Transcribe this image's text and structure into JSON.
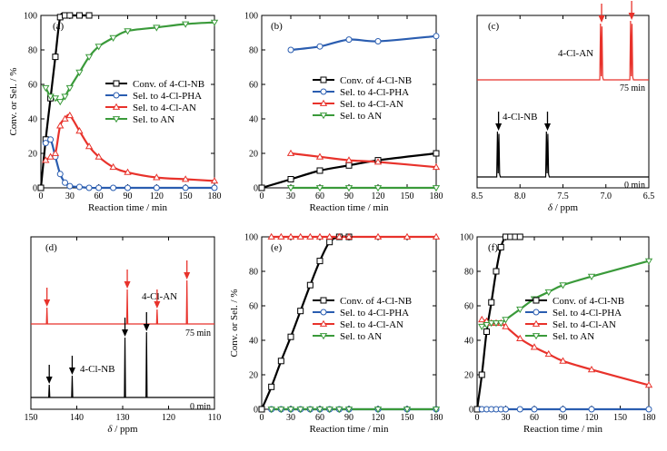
{
  "chart_data": [
    {
      "panel": "(a)",
      "type": "line",
      "xlabel": "Reaction time / min",
      "ylabel": "Conv. or Sel. / %",
      "xlim": [
        0,
        180
      ],
      "ylim": [
        0,
        100
      ],
      "xticks": [
        0,
        30,
        60,
        90,
        120,
        150,
        180
      ],
      "yticks": [
        0,
        20,
        40,
        60,
        80,
        100
      ],
      "legend_position": "center-right",
      "series": [
        {
          "name": "Conv. of 4-Cl-NB",
          "color": "#000000",
          "marker": "square",
          "points": [
            [
              0,
              0
            ],
            [
              5,
              28
            ],
            [
              10,
              52
            ],
            [
              15,
              76
            ],
            [
              20,
              99
            ],
            [
              25,
              100
            ],
            [
              30,
              100
            ],
            [
              40,
              100
            ],
            [
              50,
              100
            ]
          ]
        },
        {
          "name": "Sel. to 4-Cl-PHA",
          "color": "#2a5db0",
          "marker": "circle",
          "points": [
            [
              5,
              26
            ],
            [
              10,
              28
            ],
            [
              15,
              18
            ],
            [
              20,
              8
            ],
            [
              25,
              3
            ],
            [
              30,
              1
            ],
            [
              40,
              0.5
            ],
            [
              50,
              0
            ],
            [
              60,
              0
            ],
            [
              75,
              0
            ],
            [
              90,
              0
            ],
            [
              120,
              0
            ],
            [
              150,
              0
            ],
            [
              180,
              0
            ]
          ]
        },
        {
          "name": "Sel. to 4-Cl-AN",
          "color": "#e8322b",
          "marker": "triangle-up",
          "points": [
            [
              5,
              16
            ],
            [
              10,
              18
            ],
            [
              15,
              20
            ],
            [
              20,
              36
            ],
            [
              25,
              40
            ],
            [
              30,
              42
            ],
            [
              40,
              33
            ],
            [
              50,
              24
            ],
            [
              60,
              18
            ],
            [
              75,
              12
            ],
            [
              90,
              9
            ],
            [
              120,
              6
            ],
            [
              150,
              5
            ],
            [
              180,
              4
            ]
          ]
        },
        {
          "name": "Sel. to AN",
          "color": "#3a9a3a",
          "marker": "triangle-down",
          "points": [
            [
              5,
              58
            ],
            [
              10,
              53
            ],
            [
              15,
              52
            ],
            [
              20,
              50
            ],
            [
              25,
              53
            ],
            [
              30,
              58
            ],
            [
              40,
              67
            ],
            [
              50,
              76
            ],
            [
              60,
              82
            ],
            [
              75,
              87
            ],
            [
              90,
              91
            ],
            [
              120,
              93
            ],
            [
              150,
              95
            ],
            [
              180,
              96
            ]
          ]
        }
      ]
    },
    {
      "panel": "(b)",
      "type": "line",
      "xlabel": "Reaction time / min",
      "ylabel": "",
      "xlim": [
        0,
        180
      ],
      "ylim": [
        0,
        100
      ],
      "xticks": [
        0,
        30,
        60,
        90,
        120,
        150,
        180
      ],
      "yticks": [
        0,
        20,
        40,
        60,
        80,
        100
      ],
      "legend_position": "center-right",
      "series": [
        {
          "name": "Conv. of 4-Cl-NB",
          "color": "#000000",
          "marker": "square",
          "points": [
            [
              0,
              0
            ],
            [
              30,
              5
            ],
            [
              60,
              10
            ],
            [
              90,
              13
            ],
            [
              120,
              16
            ],
            [
              180,
              20
            ]
          ]
        },
        {
          "name": "Sel. to 4-Cl-PHA",
          "color": "#2a5db0",
          "marker": "circle",
          "points": [
            [
              30,
              80
            ],
            [
              60,
              82
            ],
            [
              90,
              86
            ],
            [
              120,
              85
            ],
            [
              180,
              88
            ]
          ]
        },
        {
          "name": "Sel. to 4-Cl-AN",
          "color": "#e8322b",
          "marker": "triangle-up",
          "points": [
            [
              30,
              20
            ],
            [
              60,
              18
            ],
            [
              90,
              16
            ],
            [
              120,
              15
            ],
            [
              180,
              12
            ]
          ]
        },
        {
          "name": "Sel. to AN",
          "color": "#3a9a3a",
          "marker": "triangle-down",
          "points": [
            [
              30,
              0
            ],
            [
              60,
              0
            ],
            [
              90,
              0
            ],
            [
              120,
              0
            ],
            [
              180,
              0
            ]
          ]
        }
      ]
    },
    {
      "panel": "(c)",
      "type": "line",
      "kind": "nmr-spectrum",
      "xlabel": "δ / ppm",
      "xlim": [
        8.5,
        6.5
      ],
      "reversed": true,
      "xticks": [
        8.5,
        8.0,
        7.5,
        7.0,
        6.5
      ],
      "traces": [
        {
          "label": "75 min",
          "color": "#e8322b",
          "compound": "4-Cl-AN",
          "peaks": [
            7.05,
            6.7
          ]
        },
        {
          "label": "0 min",
          "color": "#000000",
          "compound": "4-Cl-NB",
          "peaks": [
            8.25,
            7.68
          ]
        }
      ]
    },
    {
      "panel": "(d)",
      "type": "line",
      "kind": "nmr-spectrum",
      "xlabel": "δ / ppm",
      "xlim": [
        150,
        110
      ],
      "reversed": true,
      "xticks": [
        150,
        140,
        130,
        120,
        110
      ],
      "traces": [
        {
          "label": "75 min",
          "color": "#e8322b",
          "compound": "4-Cl-AN",
          "peaks": [
            146.5,
            129.0,
            122.5,
            116.0
          ]
        },
        {
          "label": "0 min",
          "color": "#000000",
          "compound": "4-Cl-NB",
          "peaks": [
            146.0,
            141.0,
            129.5,
            124.8
          ]
        }
      ]
    },
    {
      "panel": "(e)",
      "type": "line",
      "xlabel": "Reaction time / min",
      "ylabel": "Conv. or Sel. / %",
      "xlim": [
        0,
        180
      ],
      "ylim": [
        0,
        100
      ],
      "xticks": [
        0,
        30,
        60,
        90,
        120,
        150,
        180
      ],
      "yticks": [
        0,
        20,
        40,
        60,
        80,
        100
      ],
      "legend_position": "center-right",
      "series": [
        {
          "name": "Conv. of 4-Cl-NB",
          "color": "#000000",
          "marker": "square",
          "points": [
            [
              0,
              0
            ],
            [
              10,
              13
            ],
            [
              20,
              28
            ],
            [
              30,
              42
            ],
            [
              40,
              57
            ],
            [
              50,
              72
            ],
            [
              60,
              86
            ],
            [
              70,
              97
            ],
            [
              80,
              100
            ],
            [
              90,
              100
            ]
          ]
        },
        {
          "name": "Sel. to 4-Cl-PHA",
          "color": "#2a5db0",
          "marker": "circle",
          "points": [
            [
              10,
              0
            ],
            [
              20,
              0
            ],
            [
              30,
              0
            ],
            [
              40,
              0
            ],
            [
              50,
              0
            ],
            [
              60,
              0
            ],
            [
              70,
              0
            ],
            [
              80,
              0
            ],
            [
              90,
              0
            ],
            [
              120,
              0
            ],
            [
              150,
              0
            ],
            [
              180,
              0
            ]
          ]
        },
        {
          "name": "Sel. to 4-Cl-AN",
          "color": "#e8322b",
          "marker": "triangle-up",
          "points": [
            [
              10,
              100
            ],
            [
              20,
              100
            ],
            [
              30,
              100
            ],
            [
              40,
              100
            ],
            [
              50,
              100
            ],
            [
              60,
              100
            ],
            [
              70,
              100
            ],
            [
              80,
              100
            ],
            [
              90,
              100
            ],
            [
              120,
              100
            ],
            [
              150,
              100
            ],
            [
              180,
              100
            ]
          ]
        },
        {
          "name": "Sel. to AN",
          "color": "#3a9a3a",
          "marker": "triangle-down",
          "points": [
            [
              10,
              0
            ],
            [
              20,
              0
            ],
            [
              30,
              0
            ],
            [
              40,
              0
            ],
            [
              50,
              0
            ],
            [
              60,
              0
            ],
            [
              70,
              0
            ],
            [
              80,
              0
            ],
            [
              90,
              0
            ],
            [
              120,
              0
            ],
            [
              150,
              0
            ],
            [
              180,
              0
            ]
          ]
        }
      ]
    },
    {
      "panel": "(f)",
      "type": "line",
      "xlabel": "Reaction time / min",
      "ylabel": "",
      "xlim": [
        0,
        180
      ],
      "ylim": [
        0,
        100
      ],
      "xticks": [
        0,
        30,
        60,
        90,
        120,
        150,
        180
      ],
      "yticks": [
        0,
        20,
        40,
        60,
        80,
        100
      ],
      "legend_position": "center-right",
      "series": [
        {
          "name": "Conv. of 4-Cl-NB",
          "color": "#000000",
          "marker": "square",
          "points": [
            [
              0,
              0
            ],
            [
              5,
              20
            ],
            [
              10,
              45
            ],
            [
              15,
              62
            ],
            [
              20,
              80
            ],
            [
              25,
              94
            ],
            [
              30,
              100
            ],
            [
              35,
              100
            ],
            [
              40,
              100
            ],
            [
              45,
              100
            ]
          ]
        },
        {
          "name": "Sel. to 4-Cl-PHA",
          "color": "#2a5db0",
          "marker": "circle",
          "points": [
            [
              5,
              0
            ],
            [
              10,
              0
            ],
            [
              15,
              0
            ],
            [
              20,
              0
            ],
            [
              25,
              0
            ],
            [
              30,
              0
            ],
            [
              45,
              0
            ],
            [
              60,
              0
            ],
            [
              90,
              0
            ],
            [
              120,
              0
            ],
            [
              180,
              0
            ]
          ]
        },
        {
          "name": "Sel. to 4-Cl-AN",
          "color": "#e8322b",
          "marker": "triangle-up",
          "points": [
            [
              5,
              52
            ],
            [
              10,
              51
            ],
            [
              15,
              50
            ],
            [
              20,
              50
            ],
            [
              25,
              50
            ],
            [
              30,
              48
            ],
            [
              45,
              41
            ],
            [
              60,
              36
            ],
            [
              75,
              32
            ],
            [
              90,
              28
            ],
            [
              120,
              23
            ],
            [
              180,
              14
            ]
          ]
        },
        {
          "name": "Sel. to AN",
          "color": "#3a9a3a",
          "marker": "triangle-down",
          "points": [
            [
              5,
              48
            ],
            [
              10,
              49
            ],
            [
              15,
              50
            ],
            [
              20,
              50
            ],
            [
              25,
              50
            ],
            [
              30,
              52
            ],
            [
              45,
              58
            ],
            [
              60,
              64
            ],
            [
              75,
              68
            ],
            [
              90,
              72
            ],
            [
              120,
              77
            ],
            [
              180,
              86
            ]
          ]
        }
      ]
    }
  ]
}
